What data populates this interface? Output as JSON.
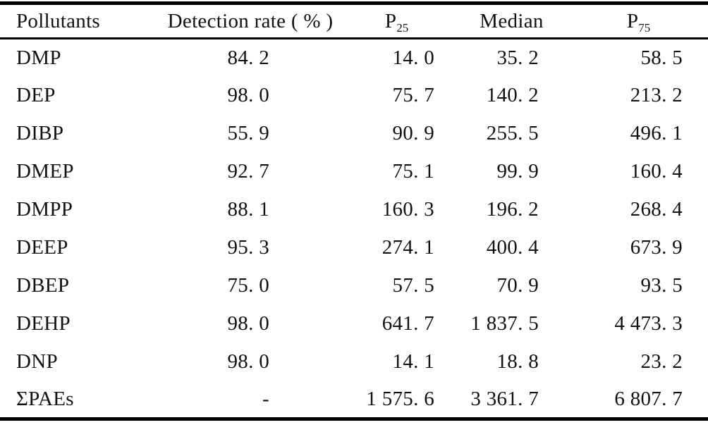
{
  "table": {
    "columns": [
      {
        "label": "Pollutants"
      },
      {
        "label": "Detection rate ( % )"
      },
      {
        "label": "P",
        "sub": "25"
      },
      {
        "label": "Median"
      },
      {
        "label": "P",
        "sub": "75"
      }
    ],
    "rows": [
      {
        "pollutant": "DMP",
        "detection_rate": "84. 2",
        "p25": "14. 0",
        "median": "35. 2",
        "p75": "58. 5"
      },
      {
        "pollutant": "DEP",
        "detection_rate": "98. 0",
        "p25": "75. 7",
        "median": "140. 2",
        "p75": "213. 2"
      },
      {
        "pollutant": "DIBP",
        "detection_rate": "55. 9",
        "p25": "90. 9",
        "median": "255. 5",
        "p75": "496. 1"
      },
      {
        "pollutant": "DMEP",
        "detection_rate": "92. 7",
        "p25": "75. 1",
        "median": "99. 9",
        "p75": "160. 4"
      },
      {
        "pollutant": "DMPP",
        "detection_rate": "88. 1",
        "p25": "160. 3",
        "median": "196. 2",
        "p75": "268. 4"
      },
      {
        "pollutant": "DEEP",
        "detection_rate": "95. 3",
        "p25": "274. 1",
        "median": "400. 4",
        "p75": "673. 9"
      },
      {
        "pollutant": "DBEP",
        "detection_rate": "75. 0",
        "p25": "57. 5",
        "median": "70. 9",
        "p75": "93. 5"
      },
      {
        "pollutant": "DEHP",
        "detection_rate": "98. 0",
        "p25": "641. 7",
        "median": "1 837. 5",
        "p75": "4 473. 3"
      },
      {
        "pollutant": "DNP",
        "detection_rate": "98. 0",
        "p25": "14. 1",
        "median": "18. 8",
        "p75": "23. 2"
      },
      {
        "pollutant": "ΣPAEs",
        "detection_rate": "-",
        "p25": "1 575. 6",
        "median": "3 361. 7",
        "p75": "6 807. 7"
      }
    ]
  },
  "chart_data": {
    "type": "table",
    "title": "",
    "columns": [
      "Pollutants",
      "Detection rate (%)",
      "P25",
      "Median",
      "P75"
    ],
    "rows": [
      [
        "DMP",
        84.2,
        14.0,
        35.2,
        58.5
      ],
      [
        "DEP",
        98.0,
        75.7,
        140.2,
        213.2
      ],
      [
        "DIBP",
        55.9,
        90.9,
        255.5,
        496.1
      ],
      [
        "DMEP",
        92.7,
        75.1,
        99.9,
        160.4
      ],
      [
        "DMPP",
        88.1,
        160.3,
        196.2,
        268.4
      ],
      [
        "DEEP",
        95.3,
        274.1,
        400.4,
        673.9
      ],
      [
        "DBEP",
        75.0,
        57.5,
        70.9,
        93.5
      ],
      [
        "DEHP",
        98.0,
        641.7,
        1837.5,
        4473.3
      ],
      [
        "DNP",
        98.0,
        14.1,
        18.8,
        23.2
      ],
      [
        "ΣPAEs",
        null,
        1575.6,
        3361.7,
        6807.7
      ]
    ],
    "layout": {
      "top_rule": "thick",
      "header_rule": "thin",
      "bottom_rule": "thick",
      "rule_color": "#000000",
      "background": "#ffffff"
    }
  }
}
